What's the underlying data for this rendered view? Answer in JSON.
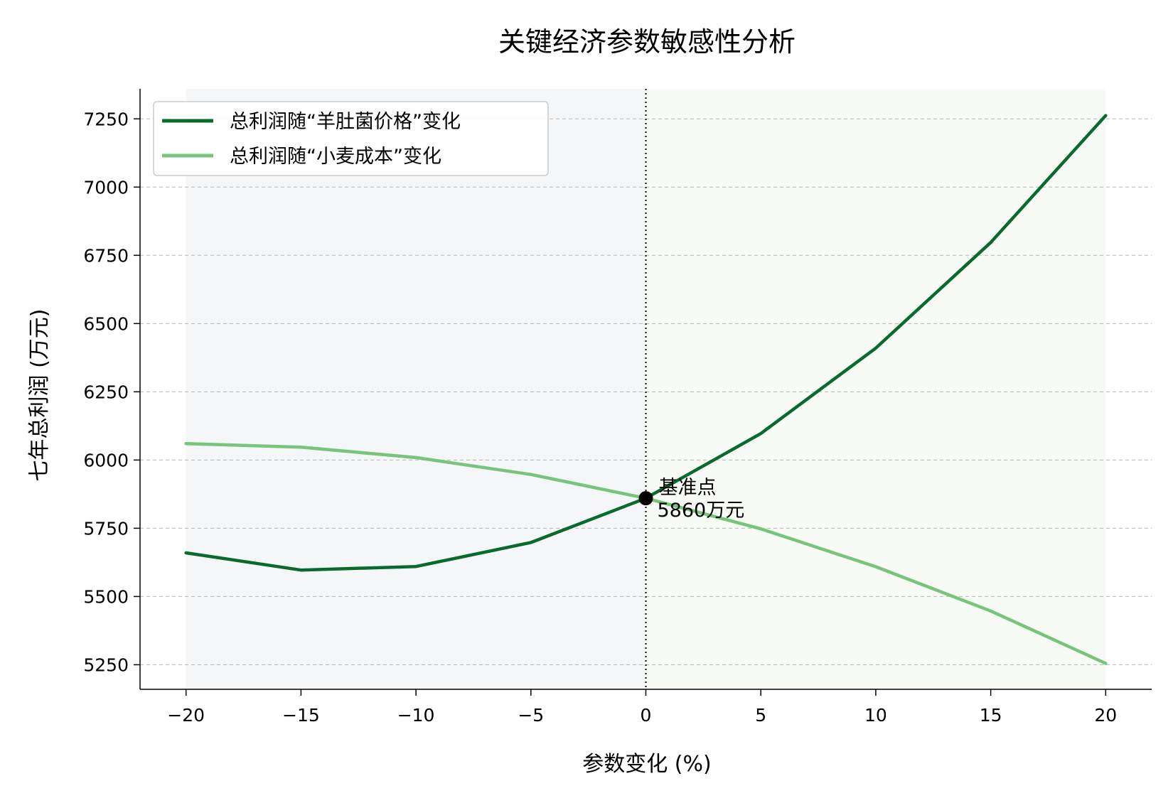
{
  "chart_data": {
    "type": "line",
    "title": "关键经济参数敏感性分析",
    "xlabel": "参数变化 (%)",
    "ylabel": "七年总利润 (万元)",
    "x": [
      -20,
      -15,
      -10,
      -5,
      0,
      5,
      10,
      15,
      20
    ],
    "x_ticks": [
      -20,
      -15,
      -10,
      -5,
      0,
      5,
      10,
      15,
      20
    ],
    "x_tick_labels": [
      "−20",
      "−15",
      "−10",
      "−5",
      "0",
      "5",
      "10",
      "15",
      "20"
    ],
    "xlim": [
      -22,
      22
    ],
    "y_ticks": [
      5250,
      5500,
      5750,
      6000,
      6250,
      6500,
      6750,
      7000,
      7250
    ],
    "y_tick_labels": [
      "5250",
      "5500",
      "5750",
      "6000",
      "6250",
      "6500",
      "6750",
      "7000",
      "7250"
    ],
    "ylim": [
      5160,
      7360
    ],
    "grid": "horizontal dashed",
    "legend_position": "top-left",
    "series": [
      {
        "name": "总利润随“羊肚菌价格”变化",
        "color": "#086b2d",
        "values": [
          5660,
          5597,
          5610,
          5698,
          5860,
          6097,
          6410,
          6797,
          7262
        ]
      },
      {
        "name": "总利润随“小麦成本”变化",
        "color": "#77c47a",
        "values": [
          6060,
          6047,
          6009,
          5947,
          5860,
          5748,
          5609,
          5447,
          5255
        ]
      }
    ],
    "shaded_regions": [
      {
        "from": -20,
        "to": 0,
        "color": "#f5f6f7"
      },
      {
        "from": 0,
        "to": 20,
        "color": "#f7faf5"
      }
    ],
    "reference_line": {
      "x": 0,
      "style": "dotted",
      "color": "#000000"
    },
    "annotation": {
      "x": 0,
      "y": 5860,
      "line1": "基准点",
      "line2": "5860万元",
      "marker_color": "#000000"
    }
  }
}
